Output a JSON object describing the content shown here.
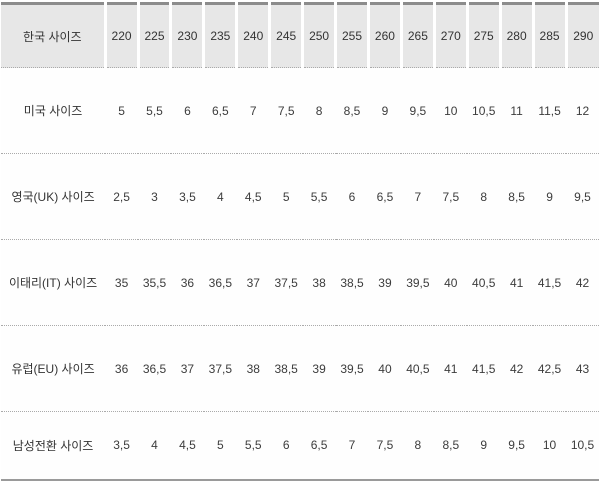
{
  "chart_data": {
    "type": "table",
    "title": "",
    "rows": [
      {
        "label": "한국 사이즈",
        "values": [
          "220",
          "225",
          "230",
          "235",
          "240",
          "245",
          "250",
          "255",
          "260",
          "265",
          "270",
          "275",
          "280",
          "285",
          "290"
        ]
      },
      {
        "label": "미국 사이즈",
        "values": [
          "5",
          "5,5",
          "6",
          "6,5",
          "7",
          "7,5",
          "8",
          "8,5",
          "9",
          "9,5",
          "10",
          "10,5",
          "11",
          "11,5",
          "12"
        ]
      },
      {
        "label": "영국(UK) 사이즈",
        "values": [
          "2,5",
          "3",
          "3,5",
          "4",
          "4,5",
          "5",
          "5,5",
          "6",
          "6,5",
          "7",
          "7,5",
          "8",
          "8,5",
          "9",
          "9,5"
        ]
      },
      {
        "label": "이태리(IT) 사이즈",
        "values": [
          "35",
          "35,5",
          "36",
          "36,5",
          "37",
          "37,5",
          "38",
          "38,5",
          "39",
          "39,5",
          "40",
          "40,5",
          "41",
          "41,5",
          "42"
        ]
      },
      {
        "label": "유럽(EU) 사이즈",
        "values": [
          "36",
          "36,5",
          "37",
          "37,5",
          "38",
          "38,5",
          "39",
          "39,5",
          "40",
          "40,5",
          "41",
          "41,5",
          "42",
          "42,5",
          "43"
        ]
      },
      {
        "label": "남성전환 사이즈",
        "values": [
          "3,5",
          "4",
          "4,5",
          "5",
          "5,5",
          "6",
          "6,5",
          "7",
          "7,5",
          "8",
          "8,5",
          "9",
          "9,5",
          "10",
          "10,5"
        ]
      }
    ],
    "layout": {
      "header_row_index": 0,
      "num_value_columns": 15,
      "grid": "dotted horizontal separators between rows, solid top and bottom borders",
      "decimal_separator": ","
    }
  },
  "colors": {
    "header_bg": "#e7e7e7",
    "border_top": "#8c8c8c",
    "border_bottom": "#9a9a9a",
    "dotted_separator": "#aaaaaa",
    "text": "#3c3c3c",
    "cell_gap": "#ffffff"
  }
}
